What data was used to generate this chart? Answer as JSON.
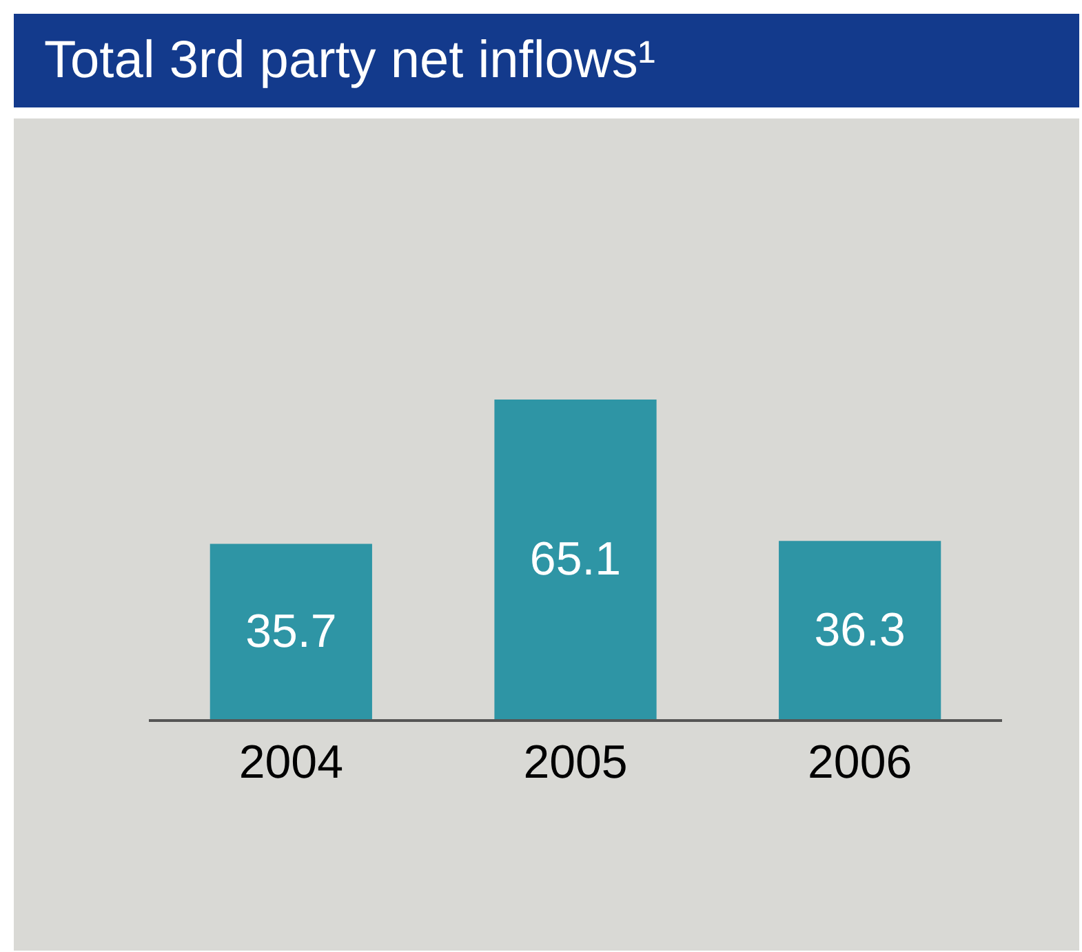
{
  "chart_data": {
    "type": "bar",
    "title": "Total 3rd party net inflows¹",
    "categories": [
      "2004",
      "2005",
      "2006"
    ],
    "values": [
      35.7,
      65.1,
      36.3
    ],
    "color": "#2e95a5",
    "data_labels": true
  }
}
